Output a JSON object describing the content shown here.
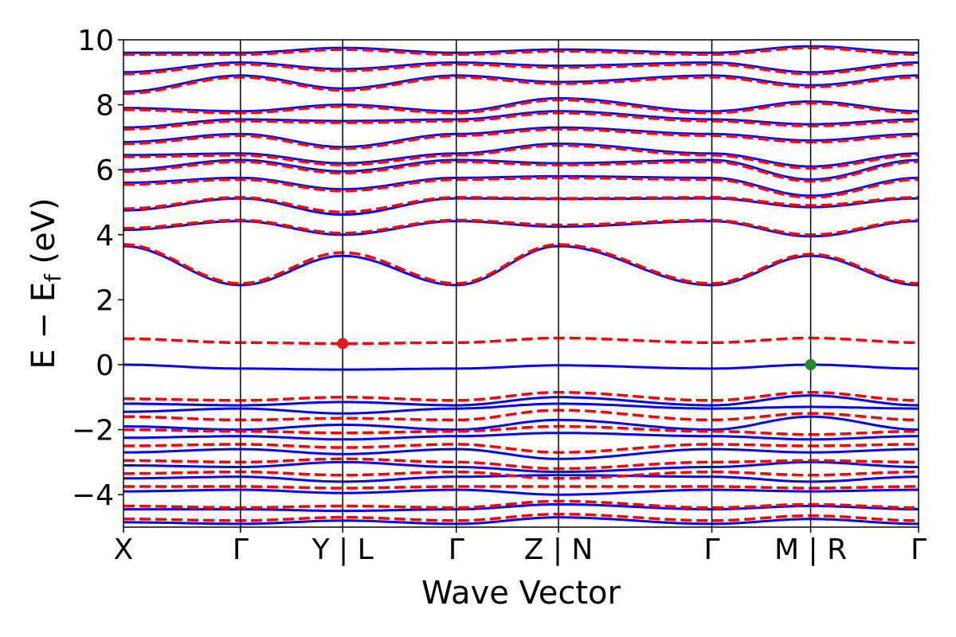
{
  "chart_data": {
    "type": "line",
    "title": "",
    "xlabel": "Wave Vector",
    "ylabel_main": "E − E",
    "ylabel_sub": "f",
    "ylabel_unit": " (eV)",
    "ylim": [
      -5,
      10
    ],
    "yticks": [
      -4,
      -2,
      0,
      2,
      4,
      6,
      8,
      10
    ],
    "ytick_labels": [
      "−4",
      "−2",
      "0",
      "2",
      "4",
      "6",
      "8",
      "10"
    ],
    "xlim": [
      0,
      7
    ],
    "kpoints": [
      {
        "label": "X",
        "x": 0
      },
      {
        "label": "Γ",
        "x": 1.03
      },
      {
        "label": "Y | L",
        "x": 1.93
      },
      {
        "label": "Γ",
        "x": 2.93
      },
      {
        "label": "Z | N",
        "x": 3.83
      },
      {
        "label": "Γ",
        "x": 5.18
      },
      {
        "label": "M | R",
        "x": 6.05
      },
      {
        "label": "Γ",
        "x": 7
      }
    ],
    "grid": false,
    "colors": {
      "spin_up": "#0000ff",
      "spin_down": "#ff0000",
      "cbm_marker": "#e41a1c",
      "vbm_marker": "#228b22"
    },
    "series": [
      {
        "style": "solid-blue",
        "bands": [
          {
            "x": [
              0,
              1.03,
              1.93,
              2.93,
              3.83,
              5.18,
              6.05,
              7
            ],
            "y": [
              0,
              -0.12,
              -0.15,
              -0.12,
              -0.02,
              -0.12,
              0.0,
              -0.12
            ]
          },
          {
            "x": [
              0,
              1.03,
              1.93,
              2.93,
              3.83,
              5.18,
              6.05,
              7
            ],
            "y": [
              3.65,
              2.45,
              3.35,
              2.45,
              3.65,
              2.45,
              3.35,
              2.45
            ]
          },
          {
            "x": [
              0,
              1.03,
              1.93,
              2.93,
              3.83,
              5.18,
              6.05,
              7
            ],
            "y": [
              4.15,
              4.42,
              4.0,
              4.42,
              4.25,
              4.42,
              3.95,
              4.42
            ]
          },
          {
            "x": [
              0,
              1.03,
              1.93,
              2.93,
              3.83,
              5.18,
              6.05,
              7
            ],
            "y": [
              4.75,
              5.12,
              4.62,
              5.12,
              5.1,
              5.12,
              4.85,
              5.12
            ]
          },
          {
            "x": [
              0,
              1.03,
              1.93,
              2.93,
              3.83,
              5.18,
              6.05,
              7
            ],
            "y": [
              -1.2,
              -1.25,
              -1.15,
              -1.25,
              -1.0,
              -1.25,
              -0.95,
              -1.25
            ]
          },
          {
            "x": [
              0,
              1.03,
              1.93,
              2.93,
              3.83,
              5.18,
              6.05,
              7
            ],
            "y": [
              -1.45,
              -1.35,
              -1.5,
              -1.35,
              -1.2,
              -1.35,
              -1.3,
              -1.35
            ]
          },
          {
            "x": [
              0,
              1.03,
              1.93,
              2.93,
              3.83,
              5.18,
              6.05,
              7
            ],
            "y": [
              -1.9,
              -2.0,
              -1.85,
              -2.0,
              -1.7,
              -2.0,
              -1.6,
              -2.0
            ]
          },
          {
            "x": [
              0,
              1.03,
              1.93,
              2.93,
              3.83,
              5.18,
              6.05,
              7
            ],
            "y": [
              -2.25,
              -2.2,
              -2.3,
              -2.2,
              -2.1,
              -2.2,
              -2.3,
              -2.2
            ]
          },
          {
            "x": [
              0,
              1.03,
              1.93,
              2.93,
              3.83,
              5.18,
              6.05,
              7
            ],
            "y": [
              -2.7,
              -2.6,
              -2.75,
              -2.6,
              -2.9,
              -2.6,
              -2.7,
              -2.6
            ]
          },
          {
            "x": [
              0,
              1.03,
              1.93,
              2.93,
              3.83,
              5.18,
              6.05,
              7
            ],
            "y": [
              -3.1,
              -3.15,
              -3.0,
              -3.15,
              -3.3,
              -3.15,
              -3.0,
              -3.15
            ]
          },
          {
            "x": [
              0,
              1.03,
              1.93,
              2.93,
              3.83,
              5.18,
              6.05,
              7
            ],
            "y": [
              -3.5,
              -3.45,
              -3.6,
              -3.45,
              -3.4,
              -3.45,
              -3.6,
              -3.45
            ]
          },
          {
            "x": [
              0,
              1.03,
              1.93,
              2.93,
              3.83,
              5.18,
              6.05,
              7
            ],
            "y": [
              -3.9,
              -3.85,
              -3.95,
              -3.85,
              -4.0,
              -3.85,
              -3.9,
              -3.85
            ]
          },
          {
            "x": [
              0,
              1.03,
              1.93,
              2.93,
              3.83,
              5.18,
              6.05,
              7
            ],
            "y": [
              -4.45,
              -4.45,
              -4.5,
              -4.45,
              -4.3,
              -4.45,
              -4.35,
              -4.45
            ]
          },
          {
            "x": [
              0,
              1.03,
              1.93,
              2.93,
              3.83,
              5.18,
              6.05,
              7
            ],
            "y": [
              -4.85,
              -4.9,
              -4.8,
              -4.9,
              -4.7,
              -4.9,
              -4.75,
              -4.9
            ]
          },
          {
            "x": [
              0,
              1.03,
              1.93,
              2.93,
              3.83,
              5.18,
              6.05,
              7
            ],
            "y": [
              5.6,
              5.75,
              5.4,
              5.75,
              5.8,
              5.75,
              5.2,
              5.75
            ]
          },
          {
            "x": [
              0,
              1.03,
              1.93,
              2.93,
              3.83,
              5.18,
              6.05,
              7
            ],
            "y": [
              6.0,
              6.3,
              5.95,
              6.3,
              6.2,
              6.3,
              5.7,
              6.3
            ]
          },
          {
            "x": [
              0,
              1.03,
              1.93,
              2.93,
              3.83,
              5.18,
              6.05,
              7
            ],
            "y": [
              6.45,
              6.5,
              6.2,
              6.5,
              6.8,
              6.5,
              6.1,
              6.5
            ]
          },
          {
            "x": [
              0,
              1.03,
              1.93,
              2.93,
              3.83,
              5.18,
              6.05,
              7
            ],
            "y": [
              6.85,
              7.1,
              6.7,
              7.1,
              7.3,
              7.1,
              6.9,
              7.1
            ]
          },
          {
            "x": [
              0,
              1.03,
              1.93,
              2.93,
              3.83,
              5.18,
              6.05,
              7
            ],
            "y": [
              7.3,
              7.55,
              7.5,
              7.55,
              7.8,
              7.55,
              7.4,
              7.55
            ]
          },
          {
            "x": [
              0,
              1.03,
              1.93,
              2.93,
              3.83,
              5.18,
              6.05,
              7
            ],
            "y": [
              7.9,
              7.8,
              8.0,
              7.8,
              8.2,
              7.8,
              8.1,
              7.8
            ]
          },
          {
            "x": [
              0,
              1.03,
              1.93,
              2.93,
              3.83,
              5.18,
              6.05,
              7
            ],
            "y": [
              8.4,
              8.9,
              8.5,
              8.9,
              8.7,
              8.9,
              8.6,
              8.9
            ]
          },
          {
            "x": [
              0,
              1.03,
              1.93,
              2.93,
              3.83,
              5.18,
              6.05,
              7
            ],
            "y": [
              9.0,
              9.3,
              9.1,
              9.3,
              9.2,
              9.3,
              9.0,
              9.3
            ]
          },
          {
            "x": [
              0,
              1.03,
              1.93,
              2.93,
              3.83,
              5.18,
              6.05,
              7
            ],
            "y": [
              9.6,
              9.6,
              9.75,
              9.6,
              9.7,
              9.6,
              9.8,
              9.6
            ]
          }
        ]
      },
      {
        "style": "dashed-red",
        "bands": [
          {
            "x": [
              0,
              1.03,
              1.93,
              2.93,
              3.83,
              5.18,
              6.05,
              7
            ],
            "y": [
              0.8,
              0.68,
              0.65,
              0.68,
              0.82,
              0.68,
              0.82,
              0.68
            ]
          },
          {
            "x": [
              0,
              1.03,
              1.93,
              2.93,
              3.83,
              5.18,
              6.05,
              7
            ],
            "y": [
              3.7,
              2.5,
              3.45,
              2.5,
              3.7,
              2.5,
              3.4,
              2.5
            ]
          },
          {
            "x": [
              0,
              1.03,
              1.93,
              2.93,
              3.83,
              5.18,
              6.05,
              7
            ],
            "y": [
              4.2,
              4.45,
              4.05,
              4.45,
              4.3,
              4.45,
              4.0,
              4.45
            ]
          },
          {
            "x": [
              0,
              1.03,
              1.93,
              2.93,
              3.83,
              5.18,
              6.05,
              7
            ],
            "y": [
              4.8,
              5.15,
              4.7,
              5.15,
              5.12,
              5.15,
              4.9,
              5.15
            ]
          },
          {
            "x": [
              0,
              1.03,
              1.93,
              2.93,
              3.83,
              5.18,
              6.05,
              7
            ],
            "y": [
              -1.05,
              -1.1,
              -1.0,
              -1.1,
              -0.85,
              -1.1,
              -0.85,
              -1.1
            ]
          },
          {
            "x": [
              0,
              1.03,
              1.93,
              2.93,
              3.83,
              5.18,
              6.05,
              7
            ],
            "y": [
              -1.6,
              -1.7,
              -1.65,
              -1.7,
              -1.4,
              -1.7,
              -1.5,
              -1.7
            ]
          },
          {
            "x": [
              0,
              1.03,
              1.93,
              2.93,
              3.83,
              5.18,
              6.05,
              7
            ],
            "y": [
              -2.0,
              -2.05,
              -2.1,
              -2.05,
              -1.9,
              -2.05,
              -2.15,
              -2.05
            ]
          },
          {
            "x": [
              0,
              1.03,
              1.93,
              2.93,
              3.83,
              5.18,
              6.05,
              7
            ],
            "y": [
              -2.5,
              -2.45,
              -2.55,
              -2.45,
              -2.7,
              -2.45,
              -2.5,
              -2.45
            ]
          },
          {
            "x": [
              0,
              1.03,
              1.93,
              2.93,
              3.83,
              5.18,
              6.05,
              7
            ],
            "y": [
              -2.95,
              -3.0,
              -2.9,
              -3.0,
              -3.2,
              -3.0,
              -2.95,
              -3.0
            ]
          },
          {
            "x": [
              0,
              1.03,
              1.93,
              2.93,
              3.83,
              5.18,
              6.05,
              7
            ],
            "y": [
              -3.35,
              -3.3,
              -3.4,
              -3.3,
              -3.5,
              -3.3,
              -3.4,
              -3.3
            ]
          },
          {
            "x": [
              0,
              1.03,
              1.93,
              2.93,
              3.83,
              5.18,
              6.05,
              7
            ],
            "y": [
              -3.75,
              -3.75,
              -3.8,
              -3.75,
              -3.75,
              -3.75,
              -3.8,
              -3.75
            ]
          },
          {
            "x": [
              0,
              1.03,
              1.93,
              2.93,
              3.83,
              5.18,
              6.05,
              7
            ],
            "y": [
              -4.35,
              -4.4,
              -4.35,
              -4.4,
              -4.2,
              -4.4,
              -4.3,
              -4.4
            ]
          },
          {
            "x": [
              0,
              1.03,
              1.93,
              2.93,
              3.83,
              5.18,
              6.05,
              7
            ],
            "y": [
              -4.75,
              -4.8,
              -4.7,
              -4.8,
              -4.6,
              -4.8,
              -4.65,
              -4.8
            ]
          },
          {
            "x": [
              0,
              1.03,
              1.93,
              2.93,
              3.83,
              5.18,
              6.05,
              7
            ],
            "y": [
              5.55,
              5.7,
              5.35,
              5.7,
              5.75,
              5.7,
              5.15,
              5.7
            ]
          },
          {
            "x": [
              0,
              1.03,
              1.93,
              2.93,
              3.83,
              5.18,
              6.05,
              7
            ],
            "y": [
              5.95,
              6.25,
              5.9,
              6.25,
              6.15,
              6.25,
              5.65,
              6.25
            ]
          },
          {
            "x": [
              0,
              1.03,
              1.93,
              2.93,
              3.83,
              5.18,
              6.05,
              7
            ],
            "y": [
              6.4,
              6.45,
              6.15,
              6.45,
              6.75,
              6.45,
              6.05,
              6.45
            ]
          },
          {
            "x": [
              0,
              1.03,
              1.93,
              2.93,
              3.83,
              5.18,
              6.05,
              7
            ],
            "y": [
              6.8,
              7.05,
              6.65,
              7.05,
              7.25,
              7.05,
              6.85,
              7.05
            ]
          },
          {
            "x": [
              0,
              1.03,
              1.93,
              2.93,
              3.83,
              5.18,
              6.05,
              7
            ],
            "y": [
              7.25,
              7.5,
              7.45,
              7.5,
              7.75,
              7.5,
              7.35,
              7.5
            ]
          },
          {
            "x": [
              0,
              1.03,
              1.93,
              2.93,
              3.83,
              5.18,
              6.05,
              7
            ],
            "y": [
              7.85,
              7.75,
              7.95,
              7.75,
              8.15,
              7.75,
              8.05,
              7.75
            ]
          },
          {
            "x": [
              0,
              1.03,
              1.93,
              2.93,
              3.83,
              5.18,
              6.05,
              7
            ],
            "y": [
              8.35,
              8.85,
              8.45,
              8.85,
              8.65,
              8.85,
              8.55,
              8.85
            ]
          },
          {
            "x": [
              0,
              1.03,
              1.93,
              2.93,
              3.83,
              5.18,
              6.05,
              7
            ],
            "y": [
              8.95,
              9.25,
              9.05,
              9.25,
              9.15,
              9.25,
              8.95,
              9.25
            ]
          },
          {
            "x": [
              0,
              1.03,
              1.93,
              2.93,
              3.83,
              5.18,
              6.05,
              7
            ],
            "y": [
              9.55,
              9.55,
              9.7,
              9.55,
              9.65,
              9.55,
              9.75,
              9.55
            ]
          }
        ]
      }
    ],
    "markers": [
      {
        "name": "cbm",
        "x": 1.93,
        "y": 0.65,
        "color": "#e41a1c"
      },
      {
        "name": "vbm",
        "x": 6.05,
        "y": 0.0,
        "color": "#228b22"
      }
    ]
  }
}
